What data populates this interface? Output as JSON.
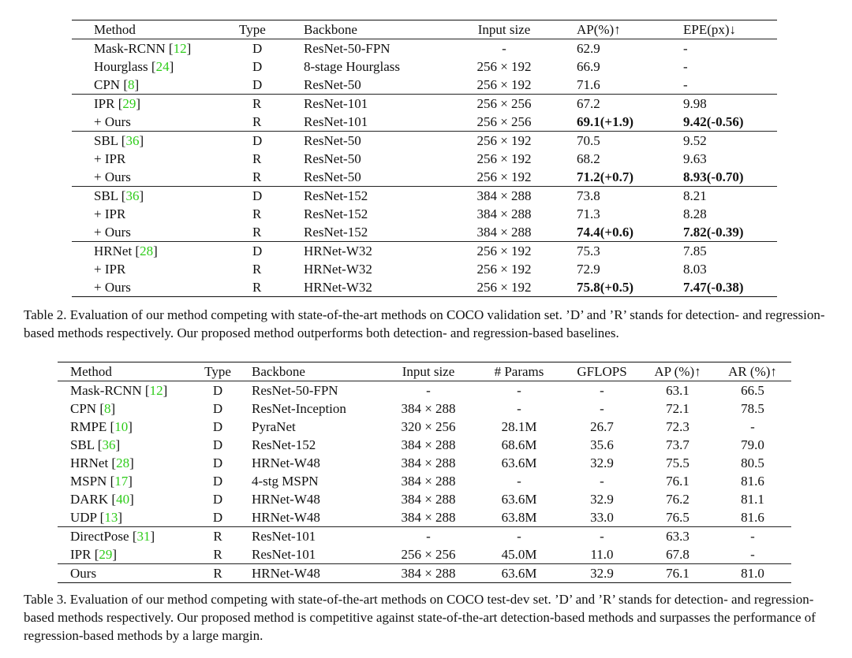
{
  "table2": {
    "headers": [
      "Method",
      "Type",
      "Backbone",
      "Input size",
      "AP(%)↑",
      "EPE(px)↓"
    ],
    "rows": [
      {
        "name": "Mask-RCNN",
        "cite": "12",
        "type": "D",
        "backbone": "ResNet-50-FPN",
        "input": "-",
        "ap": "62.9",
        "ap_bold": false,
        "epe": "-",
        "epe_bold": false
      },
      {
        "name": "Hourglass",
        "cite": "24",
        "type": "D",
        "backbone": "8-stage Hourglass",
        "input": "256 × 192",
        "ap": "66.9",
        "ap_bold": false,
        "epe": "-",
        "epe_bold": false
      },
      {
        "name": "CPN",
        "cite": "8",
        "type": "D",
        "backbone": "ResNet-50",
        "input": "256 × 192",
        "ap": "71.6",
        "ap_bold": false,
        "epe": "-",
        "epe_bold": false
      },
      {
        "name": "IPR",
        "cite": "29",
        "type": "R",
        "backbone": "ResNet-101",
        "input": "256 × 256",
        "ap": "67.2",
        "ap_bold": false,
        "epe": "9.98",
        "epe_bold": false,
        "sep": true
      },
      {
        "name": "+ Ours",
        "cite": "",
        "type": "R",
        "backbone": "ResNet-101",
        "input": "256 × 256",
        "ap": "69.1(+1.9)",
        "ap_bold": true,
        "epe": "9.42(-0.56)",
        "epe_bold": true
      },
      {
        "name": "SBL",
        "cite": "36",
        "type": "D",
        "backbone": "ResNet-50",
        "input": "256 × 192",
        "ap": "70.5",
        "ap_bold": false,
        "epe": "9.52",
        "epe_bold": false,
        "sep": true
      },
      {
        "name": "+ IPR",
        "cite": "",
        "type": "R",
        "backbone": "ResNet-50",
        "input": "256 × 192",
        "ap": "68.2",
        "ap_bold": false,
        "epe": "9.63",
        "epe_bold": false
      },
      {
        "name": "+ Ours",
        "cite": "",
        "type": "R",
        "backbone": "ResNet-50",
        "input": "256 × 192",
        "ap": "71.2(+0.7)",
        "ap_bold": true,
        "epe": "8.93(-0.70)",
        "epe_bold": true
      },
      {
        "name": "SBL",
        "cite": "36",
        "type": "D",
        "backbone": "ResNet-152",
        "input": "384 × 288",
        "ap": "73.8",
        "ap_bold": false,
        "epe": "8.21",
        "epe_bold": false,
        "sep": true
      },
      {
        "name": "+ IPR",
        "cite": "",
        "type": "R",
        "backbone": "ResNet-152",
        "input": "384 × 288",
        "ap": "71.3",
        "ap_bold": false,
        "epe": "8.28",
        "epe_bold": false
      },
      {
        "name": "+ Ours",
        "cite": "",
        "type": "R",
        "backbone": "ResNet-152",
        "input": "384 × 288",
        "ap": "74.4(+0.6)",
        "ap_bold": true,
        "epe": "7.82(-0.39)",
        "epe_bold": true
      },
      {
        "name": "HRNet",
        "cite": "28",
        "type": "D",
        "backbone": "HRNet-W32",
        "input": "256 × 192",
        "ap": "75.3",
        "ap_bold": false,
        "epe": "7.85",
        "epe_bold": false,
        "sep": true
      },
      {
        "name": "+ IPR",
        "cite": "",
        "type": "R",
        "backbone": "HRNet-W32",
        "input": "256 × 192",
        "ap": "72.9",
        "ap_bold": false,
        "epe": "8.03",
        "epe_bold": false
      },
      {
        "name": "+ Ours",
        "cite": "",
        "type": "R",
        "backbone": "HRNet-W32",
        "input": "256 × 192",
        "ap": "75.8(+0.5)",
        "ap_bold": true,
        "epe": "7.47(-0.38)",
        "epe_bold": true
      }
    ],
    "caption": "Table 2. Evaluation of our method competing with state-of-the-art methods on COCO validation set. ’D’ and ’R’ stands for detection- and regression-based methods respectively. Our proposed method outperforms both detection- and regression-based baselines."
  },
  "table3": {
    "headers": [
      "Method",
      "Type",
      "Backbone",
      "Input size",
      "# Params",
      "GFLOPS",
      "AP (%)↑",
      "AR (%)↑"
    ],
    "rows": [
      {
        "name": "Mask-RCNN",
        "cite": "12",
        "type": "D",
        "backbone": "ResNet-50-FPN",
        "input": "-",
        "params": "-",
        "gflops": "-",
        "ap": "63.1",
        "ar": "66.5"
      },
      {
        "name": "CPN",
        "cite": "8",
        "type": "D",
        "backbone": "ResNet-Inception",
        "input": "384 × 288",
        "params": "-",
        "gflops": "-",
        "ap": "72.1",
        "ar": "78.5"
      },
      {
        "name": "RMPE",
        "cite": "10",
        "type": "D",
        "backbone": "PyraNet",
        "input": "320 × 256",
        "params": "28.1M",
        "gflops": "26.7",
        "ap": "72.3",
        "ar": "-"
      },
      {
        "name": "SBL",
        "cite": "36",
        "type": "D",
        "backbone": "ResNet-152",
        "input": "384 × 288",
        "params": "68.6M",
        "gflops": "35.6",
        "ap": "73.7",
        "ar": "79.0"
      },
      {
        "name": "HRNet",
        "cite": "28",
        "type": "D",
        "backbone": "HRNet-W48",
        "input": "384 × 288",
        "params": "63.6M",
        "gflops": "32.9",
        "ap": "75.5",
        "ar": "80.5"
      },
      {
        "name": "MSPN",
        "cite": "17",
        "type": "D",
        "backbone": "4-stg MSPN",
        "input": "384 × 288",
        "params": "-",
        "gflops": "-",
        "ap": "76.1",
        "ar": "81.6"
      },
      {
        "name": "DARK",
        "cite": "40",
        "type": "D",
        "backbone": "HRNet-W48",
        "input": "384 × 288",
        "params": "63.6M",
        "gflops": "32.9",
        "ap": "76.2",
        "ar": "81.1"
      },
      {
        "name": "UDP",
        "cite": "13",
        "type": "D",
        "backbone": "HRNet-W48",
        "input": "384 × 288",
        "params": "63.8M",
        "gflops": "33.0",
        "ap": "76.5",
        "ar": "81.6"
      },
      {
        "name": "DirectPose",
        "cite": "31",
        "type": "R",
        "backbone": "ResNet-101",
        "input": "-",
        "params": "-",
        "gflops": "-",
        "ap": "63.3",
        "ar": "-",
        "sep": true
      },
      {
        "name": "IPR",
        "cite": "29",
        "type": "R",
        "backbone": "ResNet-101",
        "input": "256 × 256",
        "params": "45.0M",
        "gflops": "11.0",
        "ap": "67.8",
        "ar": "-"
      },
      {
        "name": "Ours",
        "cite": "",
        "type": "R",
        "backbone": "HRNet-W48",
        "input": "384 × 288",
        "params": "63.6M",
        "gflops": "32.9",
        "ap": "76.1",
        "ar": "81.0",
        "sep": true
      }
    ],
    "caption": "Table 3. Evaluation of our method competing with state-of-the-art methods on COCO test-dev set. ’D’ and ’R’ stands for detection- and regression-based methods respectively. Our proposed method is competitive against state-of-the-art detection-based methods and surpasses the performance of regression-based methods by a large margin."
  }
}
